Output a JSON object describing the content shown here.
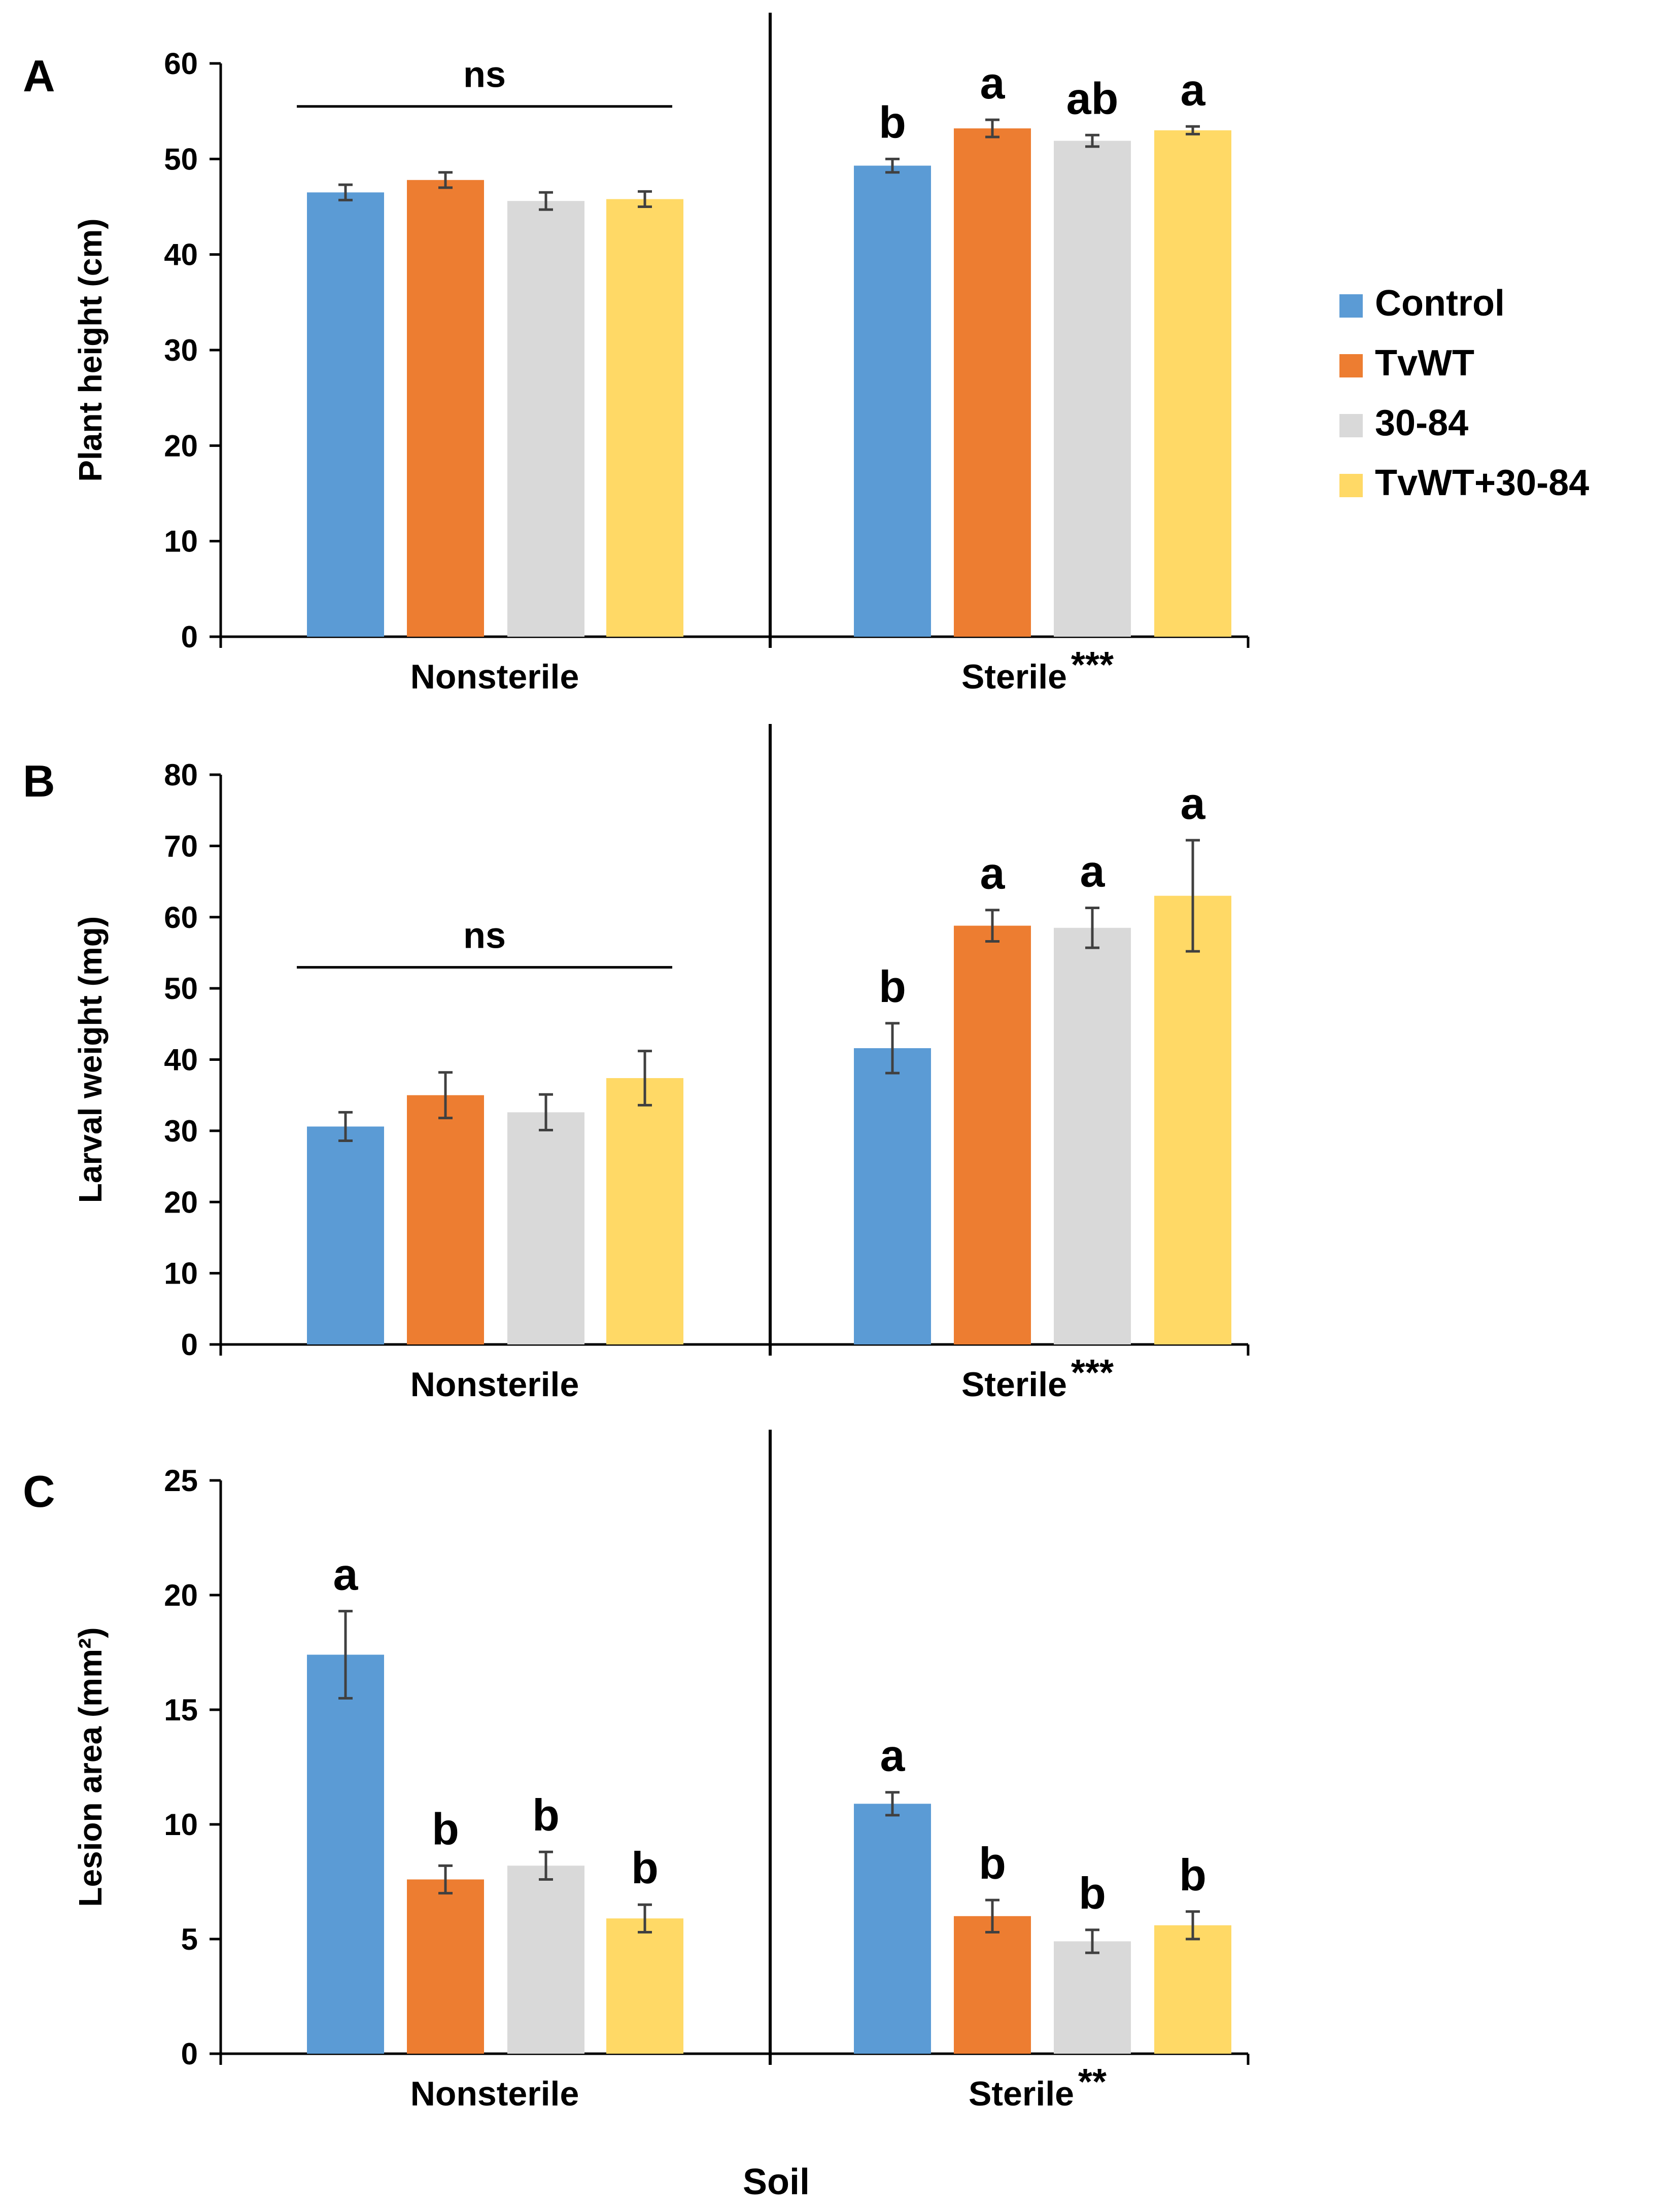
{
  "legend": [
    {
      "label": "Control",
      "color": "#5b9bd5"
    },
    {
      "label": "TvWT",
      "color": "#ed7d31"
    },
    {
      "label": "30-84",
      "color": "#d9d9d9"
    },
    {
      "label": "TvWT+30-84",
      "color": "#ffd966"
    }
  ],
  "x_title": "Soil",
  "chart_data": [
    {
      "type": "bar",
      "panel": "A",
      "ylabel": "Plant height (cm)",
      "ylim": [
        0,
        60
      ],
      "yticks": [
        0,
        10,
        20,
        30,
        40,
        50,
        60
      ],
      "groups": [
        {
          "name": "Nonsterile",
          "stars": "",
          "ns_label": "ns",
          "values": [
            46.5,
            47.8,
            45.6,
            45.8
          ],
          "errors": [
            0.8,
            0.8,
            0.9,
            0.8
          ],
          "letters": [
            "",
            "",
            "",
            ""
          ]
        },
        {
          "name": "Sterile",
          "stars": "***",
          "ns_label": "",
          "values": [
            49.3,
            53.2,
            51.9,
            53.0
          ],
          "errors": [
            0.7,
            0.9,
            0.6,
            0.4
          ],
          "letters": [
            "b",
            "a",
            "ab",
            "a"
          ]
        }
      ]
    },
    {
      "type": "bar",
      "panel": "B",
      "ylabel": "Larval weight (mg)",
      "ylim": [
        0,
        80
      ],
      "yticks": [
        0,
        10,
        20,
        30,
        40,
        50,
        60,
        70,
        80
      ],
      "groups": [
        {
          "name": "Nonsterile",
          "stars": "",
          "ns_label": "ns",
          "values": [
            30.6,
            35.0,
            32.6,
            37.4
          ],
          "errors": [
            2.0,
            3.2,
            2.5,
            3.8
          ],
          "letters": [
            "",
            "",
            "",
            ""
          ]
        },
        {
          "name": "Sterile",
          "stars": "***",
          "ns_label": "",
          "values": [
            41.6,
            58.8,
            58.5,
            63.0
          ],
          "errors": [
            3.5,
            2.2,
            2.8,
            7.8
          ],
          "letters": [
            "b",
            "a",
            "a",
            "a"
          ]
        }
      ]
    },
    {
      "type": "bar",
      "panel": "C",
      "ylabel": "Lesion area (mm²)",
      "ylim": [
        0,
        25
      ],
      "yticks": [
        0,
        5,
        10,
        15,
        20,
        25
      ],
      "groups": [
        {
          "name": "Nonsterile",
          "stars": "",
          "ns_label": "",
          "values": [
            17.4,
            7.6,
            8.2,
            5.9
          ],
          "errors": [
            1.9,
            0.6,
            0.6,
            0.6
          ],
          "letters": [
            "a",
            "b",
            "b",
            "b"
          ]
        },
        {
          "name": "Sterile",
          "stars": "**",
          "ns_label": "",
          "values": [
            10.9,
            6.0,
            4.9,
            5.6
          ],
          "errors": [
            0.5,
            0.7,
            0.5,
            0.6
          ],
          "letters": [
            "a",
            "b",
            "b",
            "b"
          ]
        }
      ]
    }
  ]
}
